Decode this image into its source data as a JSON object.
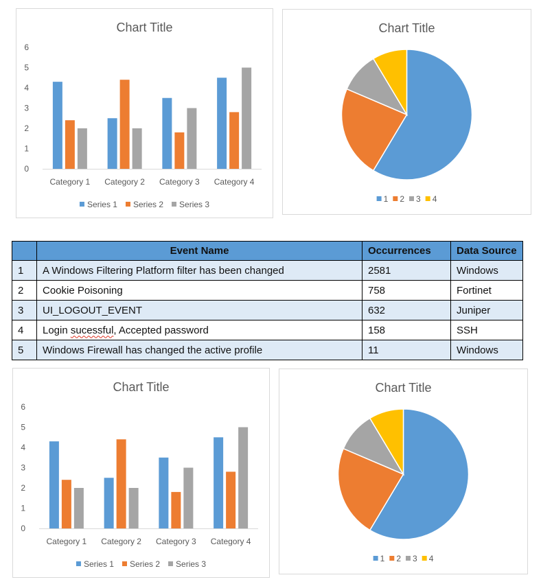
{
  "colors": {
    "series1": "#5b9bd5",
    "series2": "#ed7d31",
    "series3": "#a5a5a5",
    "series4": "#ffc000",
    "axis_text": "#595959",
    "table_header": "#5b9bd5",
    "table_band": "#deeaf6"
  },
  "chart_data": [
    {
      "type": "bar",
      "title": "Chart Title",
      "categories": [
        "Category 1",
        "Category 2",
        "Category 3",
        "Category 4"
      ],
      "series": [
        {
          "name": "Series 1",
          "values": [
            4.3,
            2.5,
            3.5,
            4.5
          ]
        },
        {
          "name": "Series 2",
          "values": [
            2.4,
            4.4,
            1.8,
            2.8
          ]
        },
        {
          "name": "Series 3",
          "values": [
            2,
            2,
            3,
            5
          ]
        }
      ],
      "yticks": [
        "0",
        "1",
        "2",
        "3",
        "4",
        "5",
        "6"
      ],
      "ylim": [
        0,
        6
      ],
      "grid": false,
      "legend": "bottom"
    },
    {
      "type": "pie",
      "title": "Chart Title",
      "labels": [
        "1",
        "2",
        "3",
        "4"
      ],
      "values": [
        8.2,
        3.2,
        1.4,
        1.2
      ],
      "legend": "bottom"
    },
    {
      "type": "bar",
      "title": "Chart Title",
      "categories": [
        "Category 1",
        "Category 2",
        "Category 3",
        "Category 4"
      ],
      "series": [
        {
          "name": "Series 1",
          "values": [
            4.3,
            2.5,
            3.5,
            4.5
          ]
        },
        {
          "name": "Series 2",
          "values": [
            2.4,
            4.4,
            1.8,
            2.8
          ]
        },
        {
          "name": "Series 3",
          "values": [
            2,
            2,
            3,
            5
          ]
        }
      ],
      "yticks": [
        "0",
        "1",
        "2",
        "3",
        "4",
        "5",
        "6"
      ],
      "ylim": [
        0,
        6
      ],
      "grid": false,
      "legend": "bottom"
    },
    {
      "type": "pie",
      "title": "Chart Title",
      "labels": [
        "1",
        "2",
        "3",
        "4"
      ],
      "values": [
        8.2,
        3.2,
        1.4,
        1.2
      ],
      "legend": "bottom"
    }
  ],
  "table": {
    "headers": [
      "",
      "Event Name",
      "Occurrences",
      "Data Source"
    ],
    "rows": [
      {
        "num": "1",
        "event": "A Windows Filtering Platform filter has been changed",
        "occurrences": "2581",
        "source": "Windows"
      },
      {
        "num": "2",
        "event": "Cookie Poisoning",
        "occurrences": "758",
        "source": "Fortinet"
      },
      {
        "num": "3",
        "event": "UI_LOGOUT_EVENT",
        "occurrences": "632",
        "source": "Juniper"
      },
      {
        "num": "4",
        "event_pre": "Login ",
        "event_flag": "sucessful",
        "event_post": ", Accepted password",
        "occurrences": "158",
        "source": "SSH"
      },
      {
        "num": "5",
        "event": "Windows Firewall has changed the active profile",
        "occurrences": "11",
        "source": "Windows"
      }
    ]
  }
}
